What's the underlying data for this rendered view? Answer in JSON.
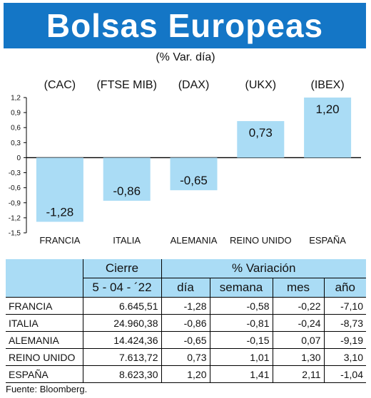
{
  "header": {
    "title": "Bolsas Europeas",
    "subtitle": "(% Var. día)"
  },
  "chart_data": {
    "type": "bar",
    "indices": [
      "(CAC)",
      "(FTSE MIB)",
      "(DAX)",
      "(UKX)",
      "(IBEX)"
    ],
    "categories": [
      "FRANCIA",
      "ITALIA",
      "ALEMANIA",
      "REINO UNIDO",
      "ESPAÑA"
    ],
    "values": [
      -1.28,
      -0.86,
      -0.65,
      0.73,
      1.2
    ],
    "value_labels": [
      "-1,28",
      "-0,86",
      "-0,65",
      "0,73",
      "1,20"
    ],
    "ylim": [
      -1.5,
      1.2
    ],
    "yticks": [
      1.2,
      0.9,
      0.6,
      0.3,
      0,
      -0.3,
      -0.6,
      -0.9,
      -1.2,
      -1.5
    ],
    "ytick_labels": [
      "1,2",
      "0,9",
      "0,6",
      "0,3",
      "0",
      "-0,3",
      "-0,6",
      "-0,9",
      "-1,2",
      "-1,5"
    ],
    "bar_color": "#aadcf5",
    "grid": false
  },
  "table": {
    "group_headers": [
      "Cierre",
      "% Variación"
    ],
    "sub_headers": [
      "5 - 04 - ´22",
      "día",
      "semana",
      "mes",
      "año"
    ],
    "rows": [
      {
        "name": "FRANCIA",
        "cierre": "6.645,51",
        "dia": "-1,28",
        "semana": "-0,58",
        "mes": "-0,22",
        "ano": "-7,10"
      },
      {
        "name": "ITALIA",
        "cierre": "24.960,38",
        "dia": "-0,86",
        "semana": "-0,81",
        "mes": "-0,24",
        "ano": "-8,73"
      },
      {
        "name": "ALEMANIA",
        "cierre": "14.424,36",
        "dia": "-0,65",
        "semana": "-0,15",
        "mes": "0,07",
        "ano": "-9,19"
      },
      {
        "name": "REINO UNIDO",
        "cierre": "7.613,72",
        "dia": "0,73",
        "semana": "1,01",
        "mes": "1,30",
        "ano": "3,10"
      },
      {
        "name": "ESPAÑA",
        "cierre": "8.623,30",
        "dia": "1,20",
        "semana": "1,41",
        "mes": "2,11",
        "ano": "-1,04"
      }
    ],
    "header_color": "#aadcf5"
  },
  "footer": {
    "source": "Fuente: Bloomberg."
  }
}
